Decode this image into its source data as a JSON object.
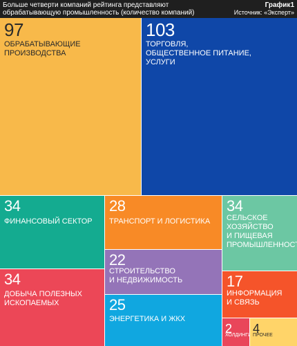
{
  "header": {
    "title": "Больше четверти компаний рейтинга представляют обрабатывающую промышленность (количество компаний)",
    "chart_no": "График1",
    "source": "Источник: «Эксперт»"
  },
  "colors": {
    "manufacturing": "#f8b94a",
    "trade": "#0f47a8",
    "finance": "#14ab90",
    "transport": "#f88a26",
    "agriculture": "#6cc7a3",
    "construction": "#9474b8",
    "mining": "#ec4757",
    "energy": "#10a7e0",
    "it": "#f5542a",
    "holdings": "#e9465a",
    "other": "#ffd469"
  },
  "chart_data": {
    "type": "treemap",
    "title": "Больше четверти компаний рейтинга представляют обрабатывающую промышленность (количество компаний)",
    "series": [
      {
        "key": "manufacturing",
        "value": 97,
        "label": "ОБРАБАТЫВАЮЩИЕ\nПРОИЗВОДСТВА"
      },
      {
        "key": "trade",
        "value": 103,
        "label": "ТОРГОВЛЯ,\nОБЩЕСТВЕННОЕ ПИТАНИЕ,\nУСЛУГИ"
      },
      {
        "key": "finance",
        "value": 34,
        "label": "ФИНАНСОВЫЙ СЕКТОР"
      },
      {
        "key": "transport",
        "value": 28,
        "label": "ТРАНСПОРТ И ЛОГИСТИКА"
      },
      {
        "key": "agriculture",
        "value": 34,
        "label": "СЕЛЬСКОЕ ХОЗЯЙСТВО\nИ ПИЩЕВАЯ\nПРОМЫШЛЕННОСТЬ"
      },
      {
        "key": "construction",
        "value": 22,
        "label": "СТРОИТЕЛЬСТВО\nИ НЕДВИЖИМОСТЬ"
      },
      {
        "key": "mining",
        "value": 34,
        "label": "ДОБЫЧА ПОЛЕЗНЫХ\nИСКОПАЕМЫХ"
      },
      {
        "key": "energy",
        "value": 25,
        "label": "ЭНЕРГЕТИКА И ЖКХ"
      },
      {
        "key": "it",
        "value": 17,
        "label": "ИНФОРМАЦИЯ\nИ СВЯЗЬ"
      },
      {
        "key": "holdings",
        "value": 2,
        "label": "ХОЛДИНГИ"
      },
      {
        "key": "other",
        "value": 4,
        "label": "ПРОЧЕЕ"
      }
    ]
  }
}
